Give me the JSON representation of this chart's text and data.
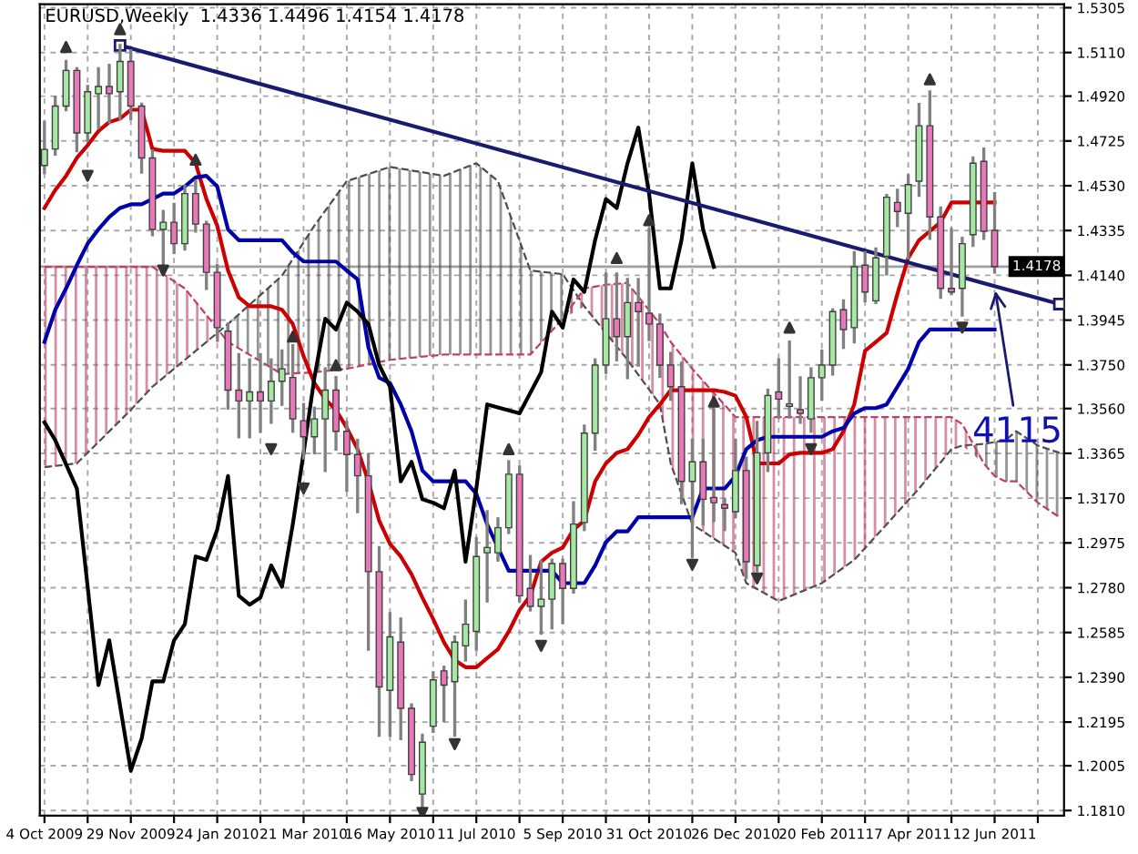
{
  "chart_data": {
    "type": "candlestick",
    "title": "EURUSD,Weekly  1.4336 1.4496 1.4154 1.4178",
    "x": [
      "2009-10-04",
      "2009-10-11",
      "2009-10-18",
      "2009-10-25",
      "2009-11-01",
      "2009-11-08",
      "2009-11-15",
      "2009-11-22",
      "2009-11-29",
      "2009-12-06",
      "2009-12-13",
      "2009-12-20",
      "2009-12-27",
      "2010-01-03",
      "2010-01-10",
      "2010-01-17",
      "2010-01-24",
      "2010-01-31",
      "2010-02-07",
      "2010-02-14",
      "2010-02-21",
      "2010-02-28",
      "2010-03-07",
      "2010-03-14",
      "2010-03-21",
      "2010-03-28",
      "2010-04-04",
      "2010-04-11",
      "2010-04-18",
      "2010-04-25",
      "2010-05-02",
      "2010-05-09",
      "2010-05-16",
      "2010-05-23",
      "2010-05-30",
      "2010-06-06",
      "2010-06-13",
      "2010-06-20",
      "2010-06-27",
      "2010-07-04",
      "2010-07-11",
      "2010-07-18",
      "2010-07-25",
      "2010-08-01",
      "2010-08-08",
      "2010-08-15",
      "2010-08-22",
      "2010-08-29",
      "2010-09-05",
      "2010-09-12",
      "2010-09-19",
      "2010-09-26",
      "2010-10-03",
      "2010-10-10",
      "2010-10-17",
      "2010-10-24",
      "2010-10-31",
      "2010-11-07",
      "2010-11-14",
      "2010-11-21",
      "2010-11-28",
      "2010-12-05",
      "2010-12-12",
      "2010-12-19",
      "2010-12-26",
      "2011-01-02",
      "2011-01-09",
      "2011-01-16",
      "2011-01-23",
      "2011-01-30",
      "2011-02-06",
      "2011-02-13",
      "2011-02-20",
      "2011-02-27",
      "2011-03-06",
      "2011-03-13",
      "2011-03-20",
      "2011-03-27",
      "2011-04-03",
      "2011-04-10",
      "2011-04-17",
      "2011-04-24",
      "2011-05-01",
      "2011-05-08",
      "2011-05-15",
      "2011-05-22",
      "2011-05-29",
      "2011-06-05",
      "2011-06-12"
    ],
    "series": [
      {
        "type": "line",
        "x": [
          "2009-10-04",
          "2009-10-25",
          "2009-11-29",
          "2009-12-13",
          "2010-01-03",
          "2010-01-17",
          "2010-01-31",
          "2010-03-07",
          "2010-03-28",
          "2010-04-18",
          "2010-05-16",
          "2010-06-20",
          "2010-07-11",
          "2010-07-25",
          "2010-08-15",
          "2010-09-05",
          "2010-09-19",
          "2010-10-03",
          "2010-10-17",
          "2010-11-07",
          "2010-11-14",
          "2010-11-28",
          "2010-12-26",
          "2011-01-02",
          "2011-01-23",
          "2011-02-20",
          "2011-03-13",
          "2011-04-03",
          "2011-04-24",
          "2011-05-15",
          "2011-05-22",
          "2011-06-05",
          "2011-06-12",
          "2011-06-19",
          "2011-06-26",
          "2011-07-10",
          "2011-07-24"
        ],
        "values": [
          1.3305,
          1.3321,
          1.3554,
          1.3655,
          1.3772,
          1.385,
          1.3928,
          1.4138,
          1.4356,
          1.455,
          1.4612,
          1.4573,
          1.4628,
          1.455,
          1.4161,
          1.4145,
          1.4005,
          1.3889,
          1.3772,
          1.3578,
          1.3321,
          1.3056,
          1.2932,
          1.28,
          1.2722,
          1.28,
          1.2901,
          1.3056,
          1.3212,
          1.3383,
          1.3399,
          1.3406,
          1.3414,
          1.3422,
          1.3461,
          1.3399,
          1.3367
        ],
        "lower": [
          1.3305,
          1.3321,
          1.3554,
          1.3655,
          1.3772,
          1.385,
          1.385,
          1.371,
          1.3718,
          1.3733,
          1.3772,
          1.3795,
          1.3795,
          1.3795,
          1.3795,
          1.3951,
          1.4005,
          1.3889,
          1.3772,
          1.3578,
          1.3321,
          1.3056,
          1.2932,
          1.28,
          1.2722,
          1.28,
          1.2901,
          1.3056,
          1.3212,
          1.3383,
          1.3399,
          1.3321,
          1.3266,
          1.3243,
          1.3243,
          1.315,
          1.3087
        ],
        "upper": [
          1.3305,
          1.3321,
          1.3554,
          1.3655,
          1.3772,
          1.385,
          1.3928,
          1.4138,
          1.4356,
          1.455,
          1.4612,
          1.4573,
          1.4628,
          1.455,
          1.4161,
          1.4145,
          1.4005,
          1.3889,
          1.3772,
          1.3578,
          1.3321,
          1.3056,
          1.2932,
          1.28,
          1.2722,
          1.28,
          1.2901,
          1.3056,
          1.3212,
          1.3383,
          1.3399,
          1.3406,
          1.3414,
          1.3422,
          1.3461,
          1.3399,
          1.3367
        ],
        "color": "#4d4d4d",
        "line_style": "dashed"
      },
      {
        "type": "line",
        "x": [
          "2009-10-04",
          "2009-10-25",
          "2009-11-29",
          "2009-12-13",
          "2010-01-03",
          "2010-01-17",
          "2010-01-31",
          "2010-03-07",
          "2010-03-28",
          "2010-04-18",
          "2010-05-16",
          "2010-06-20",
          "2010-07-11",
          "2010-07-25",
          "2010-08-15",
          "2010-09-05",
          "2010-09-19",
          "2010-10-03",
          "2010-10-17",
          "2010-11-07",
          "2010-11-14",
          "2010-11-28",
          "2010-12-26",
          "2011-01-02",
          "2011-01-23",
          "2011-02-20",
          "2011-03-13",
          "2011-04-03",
          "2011-04-24",
          "2011-05-15",
          "2011-05-22",
          "2011-06-05",
          "2011-06-12",
          "2011-06-19",
          "2011-06-26",
          "2011-07-10",
          "2011-07-24"
        ],
        "values": [
          1.4177,
          1.4177,
          1.4177,
          1.4177,
          1.4083,
          1.3967,
          1.385,
          1.371,
          1.3718,
          1.3733,
          1.3772,
          1.3795,
          1.3795,
          1.3795,
          1.3795,
          1.3951,
          1.4083,
          1.4099,
          1.4107,
          1.3928,
          1.385,
          1.3733,
          1.3523,
          1.3523,
          1.3523,
          1.3523,
          1.3523,
          1.3523,
          1.3523,
          1.3523,
          1.3492,
          1.3321,
          1.3266,
          1.3243,
          1.3243,
          1.315,
          1.3087
        ],
        "lower": [
          1.3305,
          1.3321,
          1.3554,
          1.3655,
          1.3772,
          1.385,
          1.385,
          1.371,
          1.3718,
          1.3733,
          1.3772,
          1.3795,
          1.3795,
          1.3795,
          1.3795,
          1.3951,
          1.4005,
          1.3889,
          1.3772,
          1.3578,
          1.3321,
          1.3056,
          1.2932,
          1.28,
          1.2722,
          1.28,
          1.2901,
          1.3056,
          1.3212,
          1.3383,
          1.3399,
          1.3321,
          1.3266,
          1.3243,
          1.3243,
          1.315,
          1.3087
        ],
        "upper": [
          1.4177,
          1.4177,
          1.4177,
          1.4177,
          1.4083,
          1.3967,
          1.385,
          1.371,
          1.3718,
          1.3733,
          1.3772,
          1.3795,
          1.3795,
          1.3795,
          1.3795,
          1.3951,
          1.4083,
          1.4099,
          1.4107,
          1.3928,
          1.385,
          1.3733,
          1.3523,
          1.3523,
          1.3523,
          1.3523,
          1.3523,
          1.3523,
          1.3523,
          1.3523,
          1.3492,
          1.3321,
          1.3266,
          1.3243,
          1.3243,
          1.315,
          1.3087
        ],
        "color": "#c0406a",
        "line_style": "dashed"
      },
      {
        "type": "line",
        "color": "#cc0000",
        "values": [
          1.4433,
          1.4511,
          1.4573,
          1.4651,
          1.4706,
          1.4768,
          1.4807,
          1.4822,
          1.4861,
          1.4861,
          1.469,
          1.4682,
          1.4682,
          1.4682,
          1.4628,
          1.4472,
          1.4356,
          1.4161,
          1.4044,
          1.4005,
          1.4005,
          1.4005,
          1.399,
          1.3928,
          1.3788,
          1.3671,
          1.3601,
          1.3554,
          1.3476,
          1.3383,
          1.3243,
          1.3072,
          1.2971,
          1.2916,
          1.2838,
          1.2737,
          1.2644,
          1.2543,
          1.2465,
          1.2434,
          1.2434,
          1.2473,
          1.2512,
          1.2589,
          1.2683,
          1.2745,
          1.2893,
          1.2932,
          1.2955,
          1.3033,
          1.3072,
          1.3243,
          1.3321,
          1.3367,
          1.3383,
          1.3445,
          1.3523,
          1.3578,
          1.364,
          1.364,
          1.364,
          1.364,
          1.364,
          1.3632,
          1.3616,
          1.3523,
          1.3321,
          1.3321,
          1.3321,
          1.336,
          1.3367,
          1.3367,
          1.3367,
          1.3383,
          1.3461,
          1.3578,
          1.3811,
          1.385,
          1.3889,
          1.406,
          1.4215,
          1.4293,
          1.4332,
          1.4371,
          1.4457,
          1.4457,
          1.4457,
          1.4457,
          1.4457
        ]
      },
      {
        "type": "line",
        "color": "#0000aa",
        "values": [
          1.385,
          1.399,
          1.4083,
          1.4184,
          1.4278,
          1.434,
          1.4394,
          1.4433,
          1.4449,
          1.4449,
          1.4472,
          1.4496,
          1.4496,
          1.4527,
          1.4566,
          1.4573,
          1.4527,
          1.434,
          1.4293,
          1.4293,
          1.4293,
          1.4293,
          1.4293,
          1.4239,
          1.42,
          1.42,
          1.42,
          1.42,
          1.4161,
          1.4122,
          1.3826,
          1.3694,
          1.3671,
          1.3578,
          1.3461,
          1.329,
          1.3243,
          1.3243,
          1.3243,
          1.3243,
          1.3189,
          1.3056,
          1.2955,
          1.2854,
          1.2854,
          1.2854,
          1.2854,
          1.2854,
          1.28,
          1.28,
          1.28,
          1.2877,
          1.2978,
          1.3025,
          1.3025,
          1.3087,
          1.3087,
          1.3087,
          1.3087,
          1.3087,
          1.3087,
          1.3212,
          1.3212,
          1.3212,
          1.3266,
          1.3383,
          1.3422,
          1.3437,
          1.3437,
          1.3437,
          1.3437,
          1.3437,
          1.3437,
          1.3461,
          1.3476,
          1.3539,
          1.3562,
          1.3562,
          1.3578,
          1.3655,
          1.3733,
          1.385,
          1.3904,
          1.3904,
          1.3904,
          1.3904,
          1.3904,
          1.3904,
          1.3904
        ]
      },
      {
        "type": "line",
        "color": "#000000",
        "x": [
          "2009-10-04",
          "2009-10-11",
          "2009-10-25",
          "2009-11-08",
          "2009-11-15",
          "2009-11-29",
          "2009-12-06",
          "2009-12-13",
          "2009-12-20",
          "2009-12-27",
          "2010-01-03",
          "2010-01-10",
          "2010-01-17",
          "2010-01-24",
          "2010-01-31",
          "2010-02-07",
          "2010-02-14",
          "2010-02-21",
          "2010-02-28",
          "2010-03-07",
          "2010-03-14",
          "2010-03-21",
          "2010-03-28",
          "2010-04-04",
          "2010-04-11",
          "2010-04-18",
          "2010-04-25",
          "2010-05-02",
          "2010-05-09",
          "2010-05-16",
          "2010-05-23",
          "2010-05-30",
          "2010-06-06",
          "2010-06-13",
          "2010-06-20",
          "2010-06-27",
          "2010-07-04",
          "2010-07-11",
          "2010-07-18",
          "2010-08-08",
          "2010-08-22",
          "2010-08-29",
          "2010-09-05",
          "2010-09-12",
          "2010-09-19",
          "2010-09-26",
          "2010-10-03",
          "2010-10-10",
          "2010-10-17",
          "2010-10-24",
          "2010-10-31",
          "2010-11-07",
          "2010-11-14",
          "2010-11-21",
          "2010-11-28",
          "2010-12-05",
          "2010-12-12"
        ],
        "values": [
          1.35,
          1.3422,
          1.3212,
          1.2356,
          1.2551,
          1.1983,
          1.2123,
          1.2372,
          1.2372,
          1.2551,
          1.2621,
          1.2916,
          1.2901,
          1.3033,
          1.3266,
          1.2745,
          1.2706,
          1.2737,
          1.2877,
          1.2784,
          1.3056,
          1.3367,
          1.3694,
          1.3951,
          1.3904,
          1.4021,
          1.3982,
          1.3928,
          1.3749,
          1.3655,
          1.3243,
          1.3328,
          1.3165,
          1.315,
          1.3126,
          1.329,
          1.2893,
          1.3212,
          1.3578,
          1.3539,
          1.3718,
          1.3982,
          1.3912,
          1.4122,
          1.4068,
          1.4293,
          1.4472,
          1.4433,
          1.4628,
          1.4783,
          1.4495,
          1.4083,
          1.4083,
          1.4293,
          1.4628,
          1.434,
          1.4177
        ]
      },
      {
        "type": "line",
        "color": "#1a1a6e",
        "marker": "square",
        "x": [
          "2009-11-22",
          "2011-07-24"
        ],
        "values": [
          1.5141,
          1.4015
        ]
      },
      {
        "colors": [
          "#a4e8a4",
          "#a4e8a4",
          "#a4e8a4",
          "#e878b8",
          "#a4e8a4",
          "#a4e8a4",
          "#e878b8",
          "#a4e8a4",
          "#e878b8",
          "#e878b8",
          "#e878b8",
          "#a4e8a4",
          "#e878b8",
          "#a4e8a4",
          "#e878b8",
          "#e878b8",
          "#e878b8",
          "#e878b8",
          "#e878b8",
          "#a4e8a4",
          "#e878b8",
          "#a4e8a4",
          "#a4e8a4",
          "#e878b8",
          "#e878b8",
          "#a4e8a4",
          "#a4e8a4",
          "#e878b8",
          "#e878b8",
          "#e878b8",
          "#e878b8",
          "#e878b8",
          "#a4e8a4",
          "#e878b8",
          "#e878b8",
          "#a4e8a4",
          "#a4e8a4",
          "#e878b8",
          "#a4e8a4",
          "#a4e8a4",
          "#a4e8a4",
          "#a4e8a4",
          "#a4e8a4",
          "#a4e8a4",
          "#e878b8",
          "#e878b8",
          "#a4e8a4",
          "#a4e8a4",
          "#e878b8",
          "#a4e8a4",
          "#a4e8a4",
          "#a4e8a4",
          "#a4e8a4",
          "#e878b8",
          "#a4e8a4",
          "#e878b8",
          "#e878b8",
          "#e878b8",
          "#e878b8",
          "#e878b8",
          "#a4e8a4",
          "#e878b8",
          "#e878b8",
          "#e878b8",
          "#a4e8a4",
          "#e878b8",
          "#a4e8a4",
          "#a4e8a4",
          "#e878b8",
          "#a4e8a4",
          "#e878b8",
          "#a4e8a4",
          "#a4e8a4",
          "#a4e8a4",
          "#e878b8",
          "#a4e8a4",
          "#e878b8",
          "#a4e8a4",
          "#a4e8a4",
          "#e878b8",
          "#a4e8a4",
          "#a4e8a4",
          "#e878b8",
          "#e878b8",
          "#e878b8",
          "#a4e8a4",
          "#a4e8a4",
          "#e878b8",
          "#e878b8"
        ],
        "ohlc": [
          [
            1.4618,
            1.4806,
            1.4587,
            1.4688
          ],
          [
            1.469,
            1.4916,
            1.4667,
            1.4877
          ],
          [
            1.4877,
            1.5071,
            1.4861,
            1.5032
          ],
          [
            1.5032,
            1.504,
            1.4682,
            1.476
          ],
          [
            1.476,
            1.4962,
            1.4729,
            1.4939
          ],
          [
            1.4931,
            1.504,
            1.4783,
            1.4962
          ],
          [
            1.4962,
            1.5055,
            1.4807,
            1.4931
          ],
          [
            1.4939,
            1.5141,
            1.4822,
            1.5071
          ],
          [
            1.5071,
            1.5118,
            1.4822,
            1.4877
          ],
          [
            1.4877,
            1.4885,
            1.4589,
            1.4651
          ],
          [
            1.4651,
            1.4682,
            1.4317,
            1.434
          ],
          [
            1.434,
            1.4418,
            1.4184,
            1.4371
          ],
          [
            1.4371,
            1.4449,
            1.4239,
            1.4278
          ],
          [
            1.4278,
            1.4527,
            1.4254,
            1.4496
          ],
          [
            1.4496,
            1.455,
            1.4332,
            1.4363
          ],
          [
            1.4363,
            1.4371,
            1.4083,
            1.4153
          ],
          [
            1.4153,
            1.4184,
            1.3873,
            1.3912
          ],
          [
            1.3897,
            1.3928,
            1.3562,
            1.364
          ],
          [
            1.364,
            1.3795,
            1.3437,
            1.3593
          ],
          [
            1.3593,
            1.3772,
            1.3437,
            1.3632
          ],
          [
            1.3632,
            1.3795,
            1.3461,
            1.3593
          ],
          [
            1.3593,
            1.3772,
            1.35,
            1.3679
          ],
          [
            1.3679,
            1.3811,
            1.3578,
            1.3733
          ],
          [
            1.3695,
            1.3834,
            1.3461,
            1.3515
          ],
          [
            1.3507,
            1.3578,
            1.3344,
            1.3437
          ],
          [
            1.3437,
            1.3562,
            1.3367,
            1.3515
          ],
          [
            1.3515,
            1.3733,
            1.329,
            1.364
          ],
          [
            1.364,
            1.3695,
            1.3383,
            1.3461
          ],
          [
            1.3461,
            1.35,
            1.3204,
            1.336
          ],
          [
            1.336,
            1.3422,
            1.3111,
            1.3267
          ],
          [
            1.3267,
            1.336,
            1.2512,
            1.285
          ],
          [
            1.285,
            1.2955,
            1.2138,
            1.2348
          ],
          [
            1.2333,
            1.2667,
            1.2138,
            1.2566
          ],
          [
            1.2543,
            1.2644,
            1.2123,
            1.2255
          ],
          [
            1.2255,
            1.227,
            1.1944,
            1.1967
          ],
          [
            1.1882,
            1.2138,
            1.1812,
            1.2107
          ],
          [
            1.2177,
            1.241,
            1.2154,
            1.2379
          ],
          [
            1.2418,
            1.2434,
            1.2201,
            1.2356
          ],
          [
            1.2371,
            1.2566,
            1.2138,
            1.2543
          ],
          [
            1.2527,
            1.2722,
            1.2465,
            1.2621
          ],
          [
            1.259,
            1.2994,
            1.2512,
            1.2916
          ],
          [
            1.2932,
            1.3111,
            1.2722,
            1.2955
          ],
          [
            1.2932,
            1.308,
            1.29,
            1.3041
          ],
          [
            1.3041,
            1.3329,
            1.302,
            1.3274
          ],
          [
            1.3274,
            1.3306,
            1.2722,
            1.2745
          ],
          [
            1.2777,
            1.2916,
            1.2683,
            1.2699
          ],
          [
            1.2699,
            1.2893,
            1.2582,
            1.273
          ],
          [
            1.273,
            1.29,
            1.2605,
            1.2885
          ],
          [
            1.2885,
            1.29,
            1.2628,
            1.2777
          ],
          [
            1.2777,
            1.315,
            1.2761,
            1.3057
          ],
          [
            1.3064,
            1.3484,
            1.3033,
            1.3453
          ],
          [
            1.3453,
            1.3772,
            1.3383,
            1.3749
          ],
          [
            1.3749,
            1.4146,
            1.3717,
            1.3951
          ],
          [
            1.3951,
            1.4146,
            1.3772,
            1.3873
          ],
          [
            1.3873,
            1.4122,
            1.3694,
            1.4021
          ],
          [
            1.4021,
            1.4122,
            1.3749,
            1.3982
          ],
          [
            1.3975,
            1.434,
            1.386,
            1.3928
          ],
          [
            1.3928,
            1.3967,
            1.37,
            1.3749
          ],
          [
            1.3749,
            1.38,
            1.36,
            1.3655
          ],
          [
            1.3655,
            1.3757,
            1.315,
            1.3243
          ],
          [
            1.3243,
            1.3422,
            1.2916,
            1.3328
          ],
          [
            1.3328,
            1.3422,
            1.3057,
            1.3165
          ],
          [
            1.3173,
            1.3555,
            1.3072,
            1.315
          ],
          [
            1.3142,
            1.3165,
            1.3033,
            1.3126
          ],
          [
            1.3111,
            1.3422,
            1.3088,
            1.329
          ],
          [
            1.329,
            1.3344,
            1.2823,
            1.2893
          ],
          [
            1.2877,
            1.35,
            1.2854,
            1.3367
          ],
          [
            1.3367,
            1.364,
            1.329,
            1.3617
          ],
          [
            1.3632,
            1.3772,
            1.3523,
            1.3601
          ],
          [
            1.357,
            1.385,
            1.3523,
            1.358
          ],
          [
            1.3555,
            1.3694,
            1.35,
            1.3539
          ],
          [
            1.3515,
            1.3733,
            1.3461,
            1.3694
          ],
          [
            1.3694,
            1.3811,
            1.3601,
            1.3749
          ],
          [
            1.3749,
            1.399,
            1.371,
            1.3982
          ],
          [
            1.399,
            1.4029,
            1.3826,
            1.3904
          ],
          [
            1.3912,
            1.4239,
            1.385,
            1.4177
          ],
          [
            1.4184,
            1.4239,
            1.4029,
            1.4067
          ],
          [
            1.4029,
            1.4255,
            1.4021,
            1.4216
          ],
          [
            1.4223,
            1.4488,
            1.4146,
            1.448
          ],
          [
            1.4457,
            1.4511,
            1.4356,
            1.4418
          ],
          [
            1.441,
            1.4574,
            1.4216,
            1.4535
          ],
          [
            1.455,
            1.4884,
            1.4488,
            1.4791
          ],
          [
            1.4791,
            1.4939,
            1.4301,
            1.4394
          ],
          [
            1.4394,
            1.4433,
            1.4044,
            1.4083
          ],
          [
            1.4083,
            1.434,
            1.406,
            1.4067
          ],
          [
            1.4083,
            1.4301,
            1.3967,
            1.4278
          ],
          [
            1.4317,
            1.4651,
            1.427,
            1.4628
          ],
          [
            1.4636,
            1.469,
            1.4301,
            1.4332
          ],
          [
            1.4336,
            1.4496,
            1.4154,
            1.4178
          ]
        ]
      },
      {
        "type": "scatter",
        "color": "#333333",
        "marker": "triangle",
        "x": [
          "2009-10-18",
          "2009-11-22",
          "2010-01-10",
          "2010-03-14",
          "2010-04-11",
          "2010-08-01",
          "2010-10-10",
          "2010-10-31",
          "2010-12-12",
          "2011-01-30",
          "2011-05-01"
        ],
        "values": [
          1.5134,
          1.5211,
          1.4643,
          1.3873,
          1.3749,
          1.3383,
          1.4215,
          1.438,
          1.359,
          1.3912,
          1.4993
        ]
      },
      {
        "type": "scatter",
        "color": "#333333",
        "marker": "triangle_down",
        "x": [
          "2009-11-01",
          "2009-12-20",
          "2010-02-28",
          "2010-03-21",
          "2010-06-06",
          "2010-06-27",
          "2010-08-22",
          "2010-11-28",
          "2011-01-09",
          "2011-02-13",
          "2011-05-22"
        ],
        "values": [
          1.4573,
          1.4161,
          1.3383,
          1.3212,
          1.18,
          1.2099,
          1.2527,
          1.288,
          1.282,
          1.3383,
          1.3912
        ]
      }
    ],
    "ref_lines": [
      {
        "axis": "y",
        "value": 1.4178,
        "label": "1.4178",
        "color": "#a0a0a0"
      }
    ],
    "annotations": [
      {
        "text": "4115",
        "x": "2011-06-12",
        "y": 1.4094
      }
    ],
    "xlim": [
      "2009-10-01",
      "2011-07-27"
    ],
    "xticks": [
      {
        "value": "2009-10-04",
        "label": "4 Oct 2009"
      },
      {
        "value": "2009-11-01",
        "label": null
      },
      {
        "value": "2009-11-29",
        "label": "29 Nov 2009"
      },
      {
        "value": "2009-12-27",
        "label": null
      },
      {
        "value": "2010-01-24",
        "label": "24 Jan 2010"
      },
      {
        "value": "2010-02-21",
        "label": null
      },
      {
        "value": "2010-03-21",
        "label": "21 Mar 2010"
      },
      {
        "value": "2010-04-18",
        "label": null
      },
      {
        "value": "2010-05-16",
        "label": "16 May 2010"
      },
      {
        "value": "2010-06-13",
        "label": null
      },
      {
        "value": "2010-07-11",
        "label": "11 Jul 2010"
      },
      {
        "value": "2010-08-08",
        "label": null
      },
      {
        "value": "2010-09-05",
        "label": "5 Sep 2010"
      },
      {
        "value": "2010-10-03",
        "label": null
      },
      {
        "value": "2010-10-31",
        "label": "31 Oct 2010"
      },
      {
        "value": "2010-11-28",
        "label": null
      },
      {
        "value": "2010-12-26",
        "label": "26 Dec 2010"
      },
      {
        "value": "2011-01-23",
        "label": null
      },
      {
        "value": "2011-02-20",
        "label": "20 Feb 2011"
      },
      {
        "value": "2011-03-20",
        "label": null
      },
      {
        "value": "2011-04-17",
        "label": "17 Apr 2011"
      },
      {
        "value": "2011-05-15",
        "label": null
      },
      {
        "value": "2011-06-12",
        "label": "12 Jun 2011"
      },
      {
        "value": "2011-07-10",
        "label": null
      }
    ],
    "ylim": [
      1.1788,
      1.532
    ],
    "yticks": [
      {
        "value": 1.5305,
        "label": "1.5305"
      },
      {
        "value": 1.511,
        "label": "1.5110"
      },
      {
        "value": 1.492,
        "label": "1.4920"
      },
      {
        "value": 1.4725,
        "label": "1.4725"
      },
      {
        "value": 1.453,
        "label": "1.4530"
      },
      {
        "value": 1.4335,
        "label": "1.4335"
      },
      {
        "value": 1.414,
        "label": "1.4140"
      },
      {
        "value": 1.3945,
        "label": "1.3945"
      },
      {
        "value": 1.375,
        "label": "1.3750"
      },
      {
        "value": 1.356,
        "label": "1.3560"
      },
      {
        "value": 1.3365,
        "label": "1.3365"
      },
      {
        "value": 1.317,
        "label": "1.3170"
      },
      {
        "value": 1.2975,
        "label": "1.2975"
      },
      {
        "value": 1.278,
        "label": "1.2780"
      },
      {
        "value": 1.2585,
        "label": "1.2585"
      },
      {
        "value": 1.239,
        "label": "1.2390"
      },
      {
        "value": 1.2195,
        "label": "1.2195"
      },
      {
        "value": 1.2005,
        "label": "1.2005"
      },
      {
        "value": 1.181,
        "label": "1.1810"
      }
    ],
    "grid": true
  }
}
